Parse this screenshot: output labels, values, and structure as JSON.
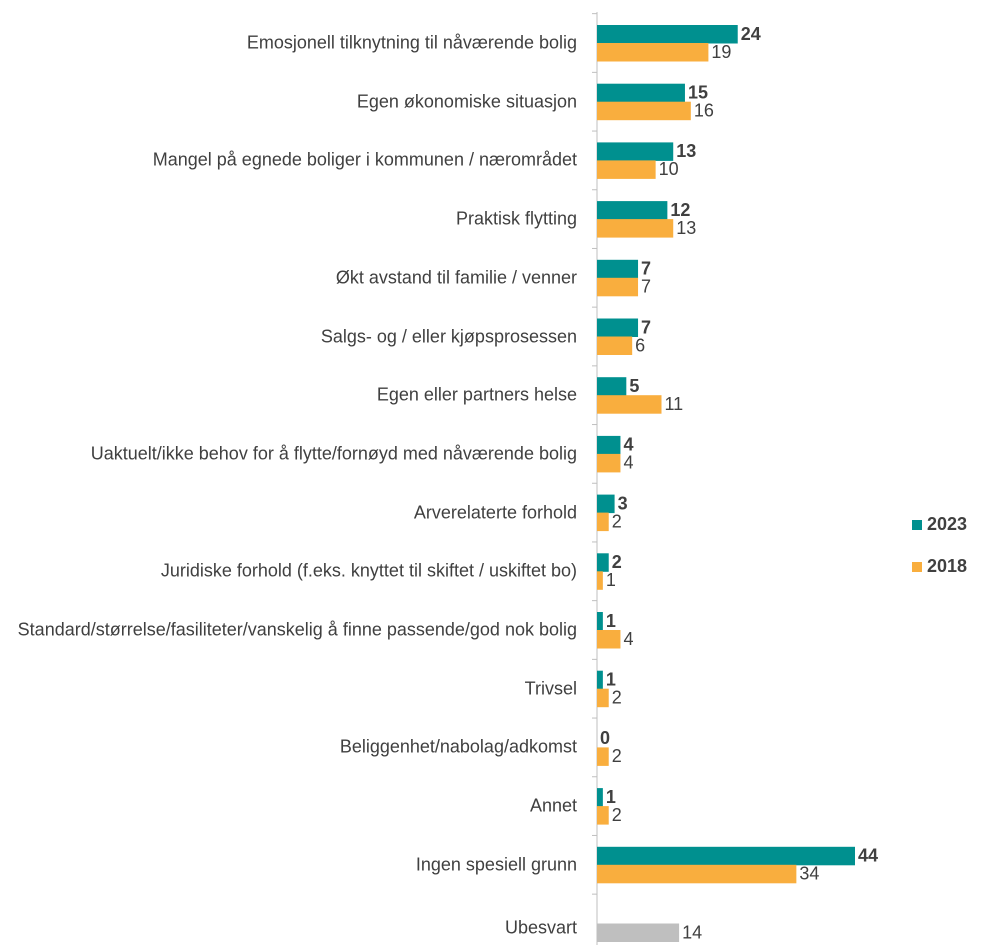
{
  "chart_data": {
    "type": "bar",
    "orientation": "horizontal",
    "categories": [
      "Emosjonell tilknytning til nåværende bolig",
      "Egen økonomiske situasjon",
      "Mangel på egnede boliger i kommunen / nærområdet",
      "Praktisk flytting",
      "Økt avstand til familie / venner",
      "Salgs- og / eller kjøpsprosessen",
      "Egen eller partners helse",
      "Uaktuelt/ikke behov for å flytte/fornøyd med nåværende bolig",
      "Arverelaterte forhold",
      "Juridiske forhold (f.eks. knyttet til skiftet / uskiftet bo)",
      "Standard/størrelse/fasiliteter/vanskelig å finne passende/god nok bolig",
      "Trivsel",
      "Beliggenhet/nabolag/adkomst",
      "Annet",
      "Ingen spesiell grunn",
      "Ubesvart"
    ],
    "series": [
      {
        "name": "2023",
        "color": "#00908f",
        "values": [
          24,
          15,
          13,
          12,
          7,
          7,
          5,
          4,
          3,
          2,
          1,
          1,
          0,
          1,
          44,
          null
        ]
      },
      {
        "name": "2018",
        "color": "#f9ae3e",
        "values": [
          19,
          16,
          10,
          13,
          7,
          6,
          11,
          4,
          2,
          1,
          4,
          2,
          2,
          2,
          34,
          14
        ],
        "colors": [
          "#f9ae3e",
          "#f9ae3e",
          "#f9ae3e",
          "#f9ae3e",
          "#f9ae3e",
          "#f9ae3e",
          "#f9ae3e",
          "#f9ae3e",
          "#f9ae3e",
          "#f9ae3e",
          "#f9ae3e",
          "#f9ae3e",
          "#f9ae3e",
          "#f9ae3e",
          "#f9ae3e",
          "#bfbfbf"
        ]
      }
    ],
    "legend": "right"
  }
}
